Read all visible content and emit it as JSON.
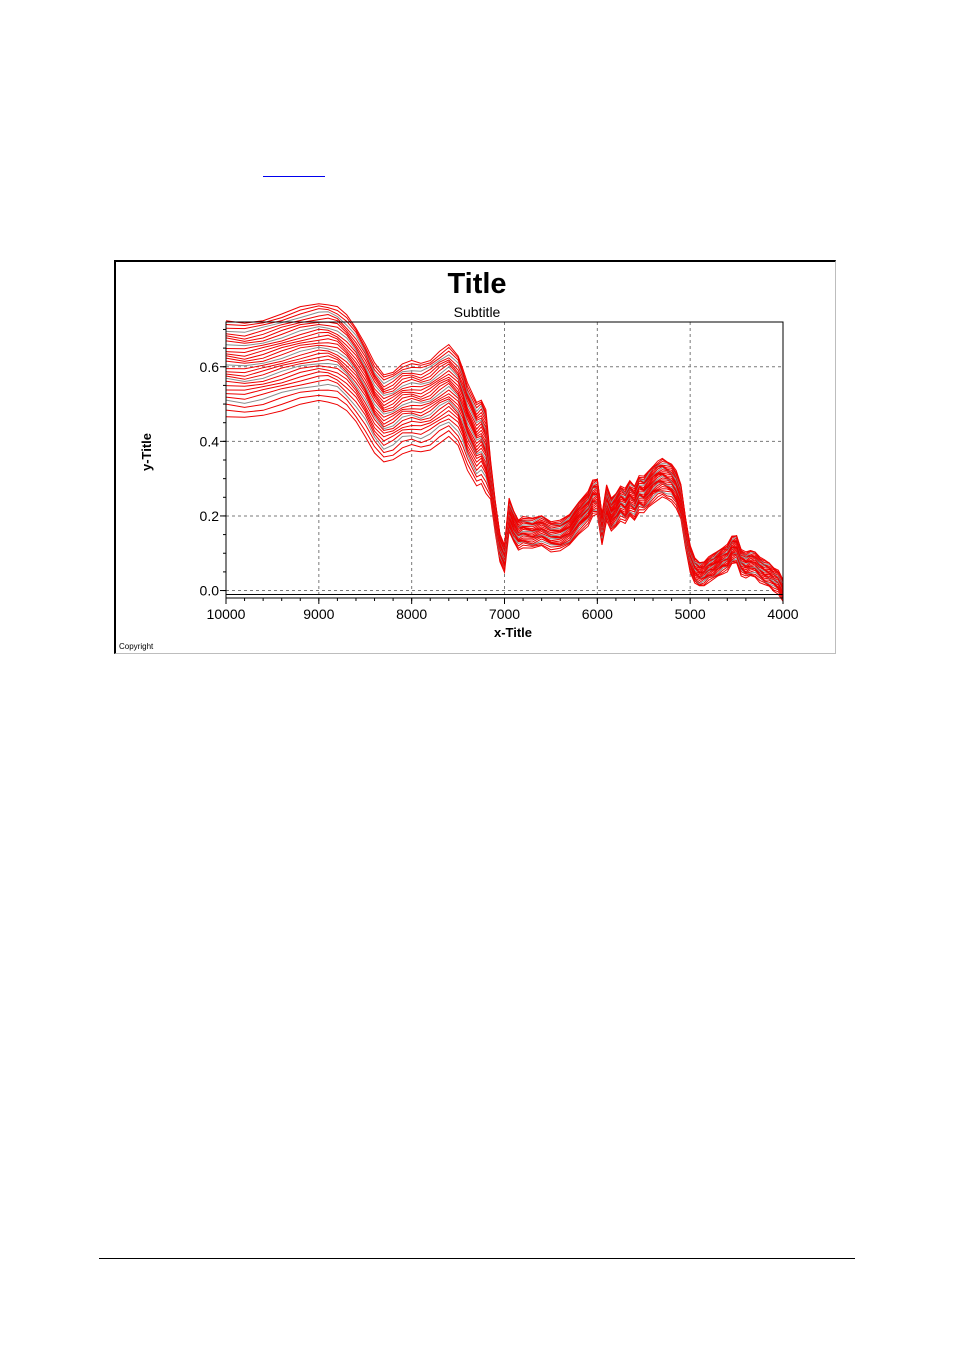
{
  "colors": {
    "link": "#0000ee",
    "series": "#ee0000",
    "series_alt": "#8c8c8c",
    "grid": "#7a7a7a",
    "footer_rule": "#000000"
  },
  "chart_data": {
    "type": "line",
    "title": "Title",
    "subtitle": "Subtitle",
    "xlabel": "x-Title",
    "ylabel": "y-Title",
    "copyright": "Copyright",
    "xlim": [
      10000,
      4000
    ],
    "ylim": [
      -0.02,
      0.72
    ],
    "x_reversed": true,
    "x_ticks": [
      10000,
      9000,
      8000,
      7000,
      6000,
      5000,
      4000
    ],
    "x_tick_labels": [
      "10000",
      "9000",
      "8000",
      "7000",
      "6000",
      "5000",
      "4000"
    ],
    "y_ticks": [
      0.0,
      0.2,
      0.4,
      0.6
    ],
    "y_tick_labels": [
      "0.0",
      "0.2",
      "0.4",
      "0.6"
    ],
    "grid": true,
    "grid_style": "dashed",
    "n_series": 30,
    "base_spectrum": {
      "x": [
        10000,
        9800,
        9600,
        9400,
        9200,
        9000,
        8900,
        8800,
        8700,
        8600,
        8500,
        8400,
        8300,
        8200,
        8100,
        8000,
        7900,
        7800,
        7700,
        7600,
        7500,
        7450,
        7400,
        7300,
        7250,
        7200,
        7150,
        7100,
        7050,
        7000,
        6950,
        6900,
        6850,
        6800,
        6700,
        6600,
        6500,
        6400,
        6300,
        6200,
        6100,
        6050,
        6000,
        5950,
        5900,
        5850,
        5800,
        5750,
        5700,
        5650,
        5600,
        5550,
        5500,
        5450,
        5400,
        5350,
        5300,
        5250,
        5200,
        5150,
        5100,
        5050,
        5000,
        4950,
        4900,
        4850,
        4800,
        4750,
        4700,
        4650,
        4600,
        4550,
        4500,
        4450,
        4400,
        4350,
        4300,
        4250,
        4200,
        4150,
        4100,
        4050,
        4000
      ],
      "y": [
        0.605,
        0.6,
        0.61,
        0.625,
        0.64,
        0.65,
        0.65,
        0.642,
        0.62,
        0.59,
        0.55,
        0.5,
        0.47,
        0.48,
        0.5,
        0.505,
        0.5,
        0.51,
        0.53,
        0.545,
        0.52,
        0.49,
        0.45,
        0.4,
        0.41,
        0.385,
        0.3,
        0.2,
        0.12,
        0.09,
        0.205,
        0.175,
        0.155,
        0.16,
        0.155,
        0.165,
        0.15,
        0.15,
        0.165,
        0.2,
        0.225,
        0.25,
        0.255,
        0.17,
        0.24,
        0.205,
        0.22,
        0.24,
        0.23,
        0.25,
        0.24,
        0.265,
        0.26,
        0.275,
        0.29,
        0.3,
        0.305,
        0.3,
        0.295,
        0.275,
        0.24,
        0.16,
        0.09,
        0.055,
        0.045,
        0.05,
        0.06,
        0.065,
        0.075,
        0.085,
        0.09,
        0.11,
        0.115,
        0.08,
        0.07,
        0.075,
        0.075,
        0.06,
        0.05,
        0.045,
        0.035,
        0.025,
        0.0
      ]
    },
    "offsets": [
      -0.09,
      -0.08,
      -0.07,
      -0.062,
      -0.055,
      -0.048,
      -0.042,
      -0.036,
      -0.03,
      -0.025,
      -0.02,
      -0.015,
      -0.01,
      -0.005,
      0.0,
      0.005,
      0.01,
      0.015,
      0.02,
      0.025,
      0.03,
      0.035,
      0.04,
      0.045,
      0.05,
      0.055,
      0.06,
      0.065,
      0.07,
      0.075
    ],
    "alt_color_series": [
      3,
      9,
      14,
      21,
      26
    ]
  }
}
